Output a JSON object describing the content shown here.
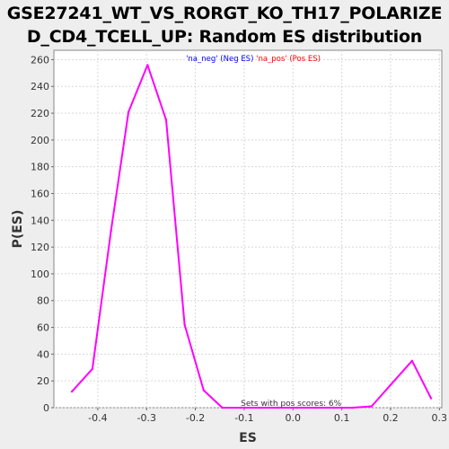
{
  "chart_data": {
    "type": "line",
    "title_line1": "GSE27241_WT_VS_RORGT_KO_TH17_POLARIZE",
    "title_line2": "D_CD4_TCELL_UP: Random ES distribution",
    "xlabel": "ES",
    "ylabel": "P(ES)",
    "xlim": [
      -0.49,
      0.305
    ],
    "ylim": [
      0,
      267
    ],
    "x_ticks": [
      -0.4,
      -0.3,
      -0.2,
      -0.1,
      0.0,
      0.1,
      0.2,
      0.3
    ],
    "x_tick_labels": [
      "-0.4",
      "-0.3",
      "-0.2",
      "-0.1",
      "0.0",
      "0.1",
      "0.2",
      "0.3"
    ],
    "y_ticks": [
      0,
      20,
      40,
      60,
      80,
      100,
      120,
      140,
      160,
      180,
      200,
      220,
      240,
      260
    ],
    "grid": true,
    "legend": {
      "placement": "top-center",
      "items": [
        {
          "text": "'na_neg' (Neg ES)",
          "color": "#0000ff"
        },
        {
          "text": "'na_pos' (Pos ES)",
          "color": "#ff0000"
        }
      ]
    },
    "annotation": "Sets with pos scores: 6%",
    "series": [
      {
        "color": "#ff00ff",
        "x": [
          -0.453,
          -0.411,
          -0.373,
          -0.337,
          -0.298,
          -0.26,
          -0.222,
          -0.183,
          -0.145,
          -0.107,
          -0.069,
          -0.031,
          0.008,
          0.046,
          0.084,
          0.122,
          0.161,
          0.2,
          0.244,
          0.283
        ],
        "y": [
          12,
          29,
          132,
          221,
          256,
          215,
          62,
          13,
          0,
          0,
          0,
          0,
          0,
          0,
          0,
          0,
          1,
          17,
          35,
          7
        ]
      }
    ]
  }
}
